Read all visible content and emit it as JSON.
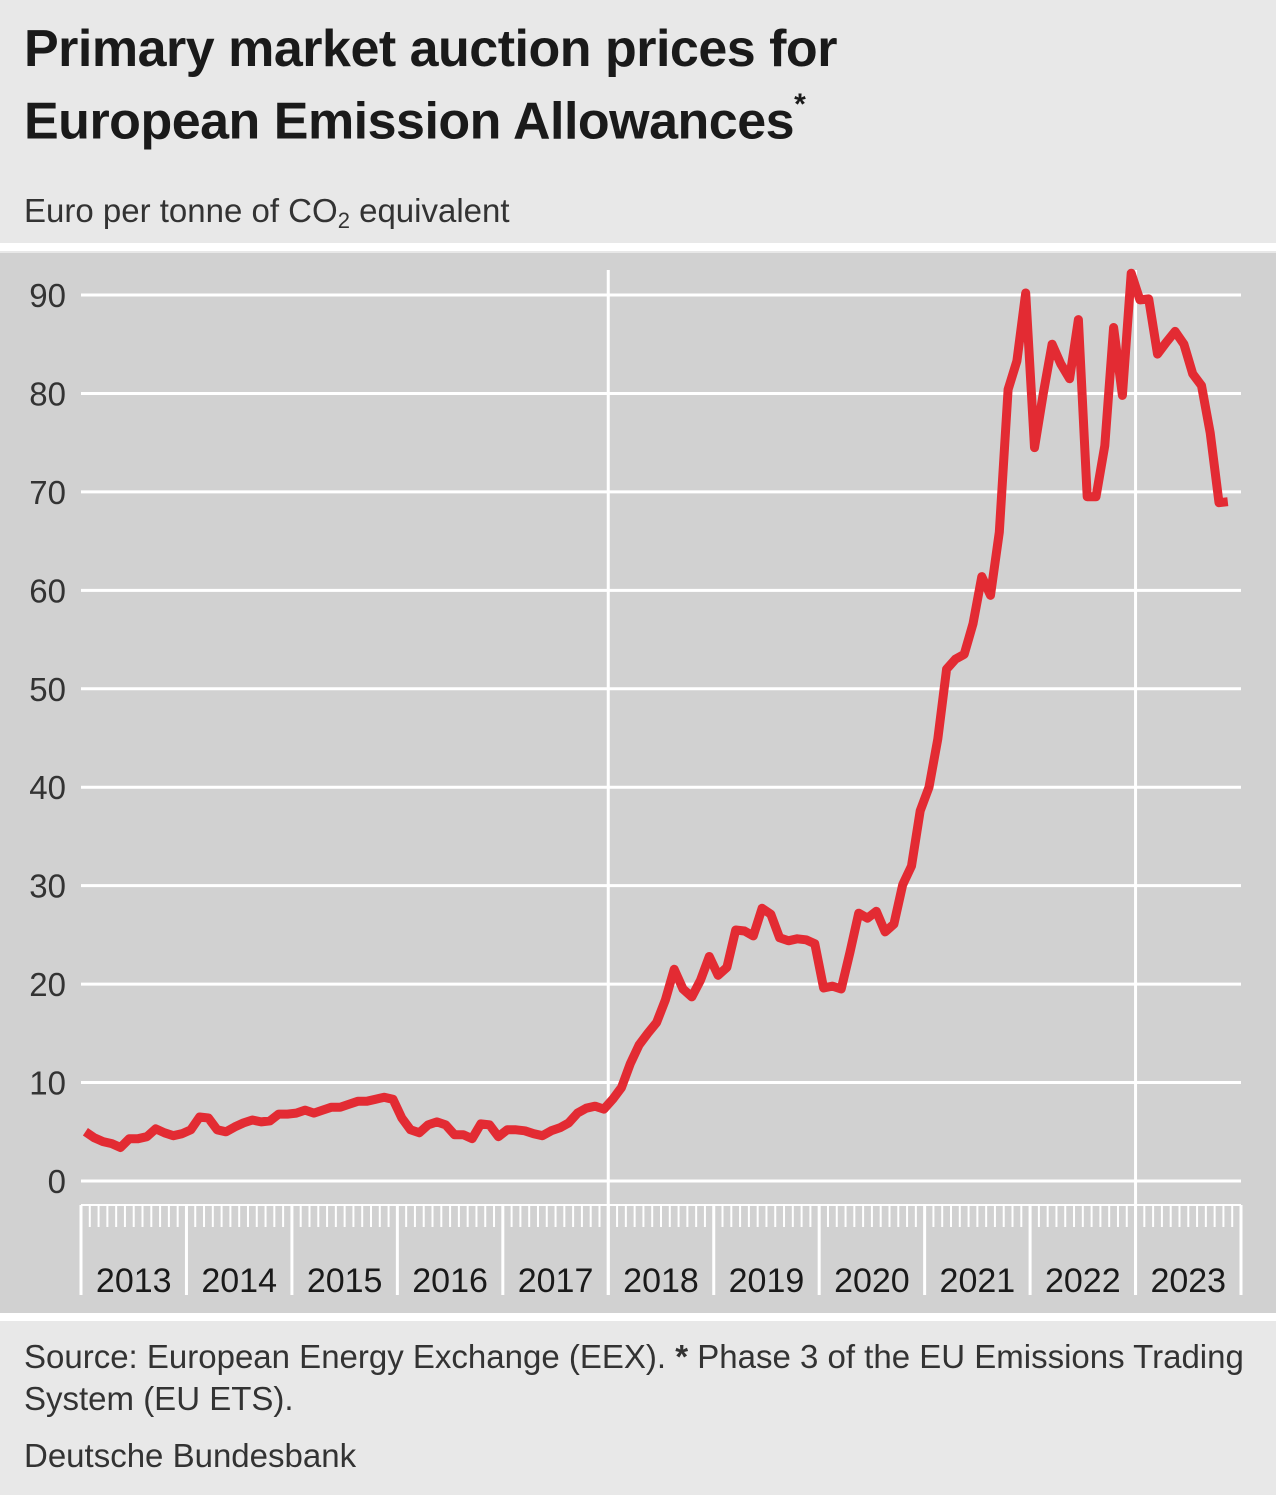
{
  "header": {
    "title_line1": "Primary market auction prices for",
    "title_line2": "European Emission Allowances",
    "title_mark": "*",
    "subtitle_pre": "Euro per tonne of CO",
    "subtitle_sub": "2",
    "subtitle_post": " equivalent"
  },
  "footer": {
    "source_part1": "Source: European Energy Exchange (EEX).",
    "source_star": "*",
    "source_part2": "Phase 3 of the EU Emissions Trading System (EU ETS).",
    "publisher": "Deutsche Bundesbank"
  },
  "colors": {
    "background": "#e8e8e8",
    "plot_background": "#d1d1d1",
    "grid": "#ffffff",
    "line": "#e32b33"
  },
  "chart_data": {
    "type": "line",
    "title": "Primary market auction prices for European Emission Allowances",
    "ylabel": "Euro per tonne of CO2 equivalent",
    "xlabel": "",
    "ylim": [
      0,
      90
    ],
    "yticks": [
      0,
      10,
      20,
      30,
      40,
      50,
      60,
      70,
      80,
      90
    ],
    "xlim": [
      "2013-01",
      "2023-12"
    ],
    "year_labels": [
      "2013",
      "2014",
      "2015",
      "2016",
      "2017",
      "2018",
      "2019",
      "2020",
      "2021",
      "2022",
      "2023"
    ],
    "vertical_markers": [
      "2018-01",
      "2023-01"
    ],
    "grid": true,
    "legend": "none",
    "series": [
      {
        "x": [
          "2013-01",
          "2013-02",
          "2013-03",
          "2013-04",
          "2013-05",
          "2013-06",
          "2013-07",
          "2013-08",
          "2013-09",
          "2013-10",
          "2013-11",
          "2013-12",
          "2014-01",
          "2014-02",
          "2014-03",
          "2014-04",
          "2014-05",
          "2014-06",
          "2014-07",
          "2014-08",
          "2014-09",
          "2014-10",
          "2014-11",
          "2014-12",
          "2015-01",
          "2015-02",
          "2015-03",
          "2015-04",
          "2015-05",
          "2015-06",
          "2015-07",
          "2015-08",
          "2015-09",
          "2015-10",
          "2015-11",
          "2015-12",
          "2016-01",
          "2016-02",
          "2016-03",
          "2016-04",
          "2016-05",
          "2016-06",
          "2016-07",
          "2016-08",
          "2016-09",
          "2016-10",
          "2016-11",
          "2016-12",
          "2017-01",
          "2017-02",
          "2017-03",
          "2017-04",
          "2017-05",
          "2017-06",
          "2017-07",
          "2017-08",
          "2017-09",
          "2017-10",
          "2017-11",
          "2017-12",
          "2018-01",
          "2018-02",
          "2018-03",
          "2018-04",
          "2018-05",
          "2018-06",
          "2018-07",
          "2018-08",
          "2018-09",
          "2018-10",
          "2018-11",
          "2018-12",
          "2019-01",
          "2019-02",
          "2019-03",
          "2019-04",
          "2019-05",
          "2019-06",
          "2019-07",
          "2019-08",
          "2019-09",
          "2019-10",
          "2019-11",
          "2019-12",
          "2020-01",
          "2020-02",
          "2020-03",
          "2020-04",
          "2020-05",
          "2020-06",
          "2020-07",
          "2020-08",
          "2020-09",
          "2020-10",
          "2020-11",
          "2020-12",
          "2021-01",
          "2021-02",
          "2021-03",
          "2021-04",
          "2021-05",
          "2021-06",
          "2021-07",
          "2021-08",
          "2021-09",
          "2021-10",
          "2021-11",
          "2021-12",
          "2022-01",
          "2022-02",
          "2022-03",
          "2022-04",
          "2022-05",
          "2022-06",
          "2022-07",
          "2022-08",
          "2022-09",
          "2022-10",
          "2022-11",
          "2022-12",
          "2023-01",
          "2023-02",
          "2023-03",
          "2023-04",
          "2023-05",
          "2023-06",
          "2023-07",
          "2023-08",
          "2023-09",
          "2023-10",
          "2023-11"
        ],
        "y": [
          5.0,
          4.4,
          4.0,
          3.8,
          3.4,
          4.3,
          4.3,
          4.5,
          5.3,
          4.9,
          4.6,
          4.8,
          5.2,
          6.5,
          6.4,
          5.2,
          5.0,
          5.5,
          5.9,
          6.2,
          6.0,
          6.1,
          6.8,
          6.8,
          6.9,
          7.2,
          6.9,
          7.2,
          7.5,
          7.5,
          7.8,
          8.1,
          8.1,
          8.3,
          8.5,
          8.3,
          6.4,
          5.2,
          4.9,
          5.7,
          6.0,
          5.7,
          4.7,
          4.7,
          4.3,
          5.8,
          5.7,
          4.5,
          5.2,
          5.2,
          5.1,
          4.8,
          4.6,
          5.1,
          5.4,
          5.9,
          6.9,
          7.4,
          7.6,
          7.3,
          8.3,
          9.5,
          11.9,
          13.8,
          15.0,
          16.1,
          18.4,
          21.5,
          19.5,
          18.7,
          20.4,
          22.8,
          20.9,
          21.7,
          25.5,
          25.4,
          24.9,
          27.7,
          27.1,
          24.7,
          24.4,
          24.6,
          24.5,
          24.1,
          19.6,
          19.8,
          19.5,
          23.2,
          27.2,
          26.7,
          27.4,
          25.3,
          26.1,
          30.1,
          32.0,
          37.6,
          40.0,
          44.9,
          52.0,
          53.0,
          53.5,
          56.6,
          61.4,
          59.5,
          65.9,
          80.4,
          83.3,
          90.2,
          74.5,
          80.0,
          85.0,
          83.0,
          81.5,
          87.5,
          69.5,
          69.5,
          74.7,
          86.7,
          79.8,
          92.2,
          89.5,
          89.6,
          84.0,
          85.2,
          86.3,
          85.0,
          82.0,
          80.8,
          76.0,
          68.9,
          69.0
        ]
      }
    ]
  }
}
